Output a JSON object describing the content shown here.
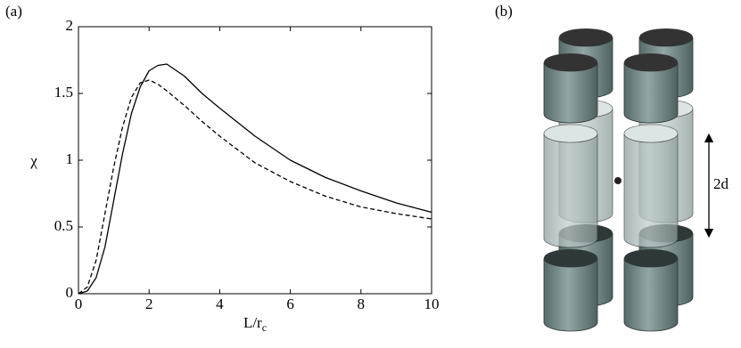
{
  "panel_a": {
    "label": "(a)"
  },
  "chart_data": {
    "type": "line",
    "xlabel": {
      "text": "L/r",
      "subscript": "c"
    },
    "ylabel": "χ",
    "x": [
      0,
      0.25,
      0.5,
      0.75,
      1,
      1.25,
      1.5,
      1.75,
      2,
      2.25,
      2.5,
      3,
      3.5,
      4,
      5,
      6,
      7,
      8,
      9,
      10
    ],
    "series": [
      {
        "color": "#000000",
        "style": "solid",
        "values": [
          0,
          0.02,
          0.12,
          0.35,
          0.7,
          1.05,
          1.35,
          1.55,
          1.67,
          1.71,
          1.72,
          1.63,
          1.5,
          1.39,
          1.18,
          1.0,
          0.87,
          0.77,
          0.68,
          0.61
        ]
      },
      {
        "color": "#000000",
        "style": "dashed",
        "values": [
          0,
          0.05,
          0.25,
          0.6,
          0.95,
          1.25,
          1.47,
          1.58,
          1.6,
          1.57,
          1.52,
          1.41,
          1.29,
          1.18,
          0.98,
          0.84,
          0.73,
          0.65,
          0.6,
          0.56
        ]
      }
    ],
    "xlim": [
      0,
      10
    ],
    "xticks": [
      0,
      2,
      4,
      6,
      8,
      10
    ],
    "ylim": [
      0,
      2
    ],
    "yticks": [
      0,
      0.5,
      1,
      1.5,
      2
    ],
    "grid": false
  },
  "panel_b": {
    "label": "(b)",
    "dimension": "2d"
  }
}
